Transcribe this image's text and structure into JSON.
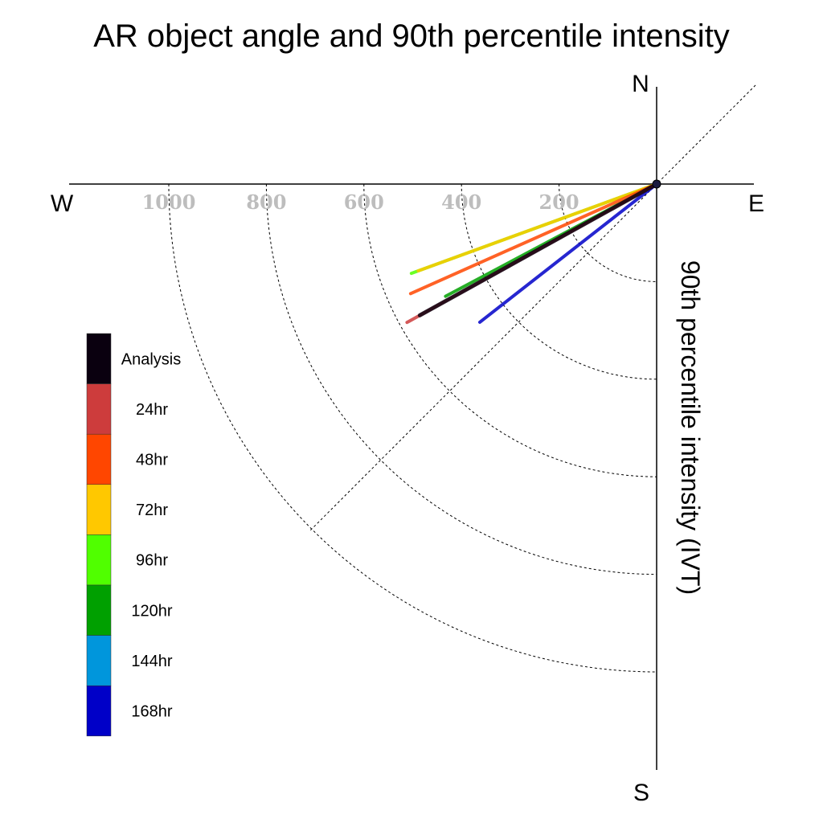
{
  "chart_data": {
    "type": "polar-vector",
    "title": "AR object angle and 90th percentile intensity",
    "ylabel": "90th percentile intensity (IVT)",
    "compass": {
      "north": "N",
      "south": "S",
      "east": "E",
      "west": "W"
    },
    "radial_ticks": [
      "200",
      "400",
      "600",
      "800",
      "1000"
    ],
    "radial_tick_values": [
      200,
      400,
      600,
      800,
      1000
    ],
    "rlim": [
      0,
      1000
    ],
    "grid": true,
    "legend_position": "left",
    "series": [
      {
        "name": "168hr",
        "color": "#0000c8",
        "direction_deg": 232,
        "magnitude": 460
      },
      {
        "name": "144hr",
        "color": "#0096dc",
        "direction_deg": 0,
        "magnitude": 0
      },
      {
        "name": "120hr",
        "color": "#00a000",
        "direction_deg": 242,
        "magnitude": 490
      },
      {
        "name": "96hr",
        "color": "#50ff00",
        "direction_deg": 250,
        "magnitude": 535
      },
      {
        "name": "72hr",
        "color": "#ffc800",
        "direction_deg": 250,
        "magnitude": 520
      },
      {
        "name": "48hr",
        "color": "#ff4600",
        "direction_deg": 246,
        "magnitude": 552
      },
      {
        "name": "24hr",
        "color": "#cd3c3c",
        "direction_deg": 241,
        "magnitude": 585
      },
      {
        "name": "Analysis",
        "color": "#0a000f",
        "direction_deg": 241,
        "magnitude": 555
      }
    ]
  }
}
